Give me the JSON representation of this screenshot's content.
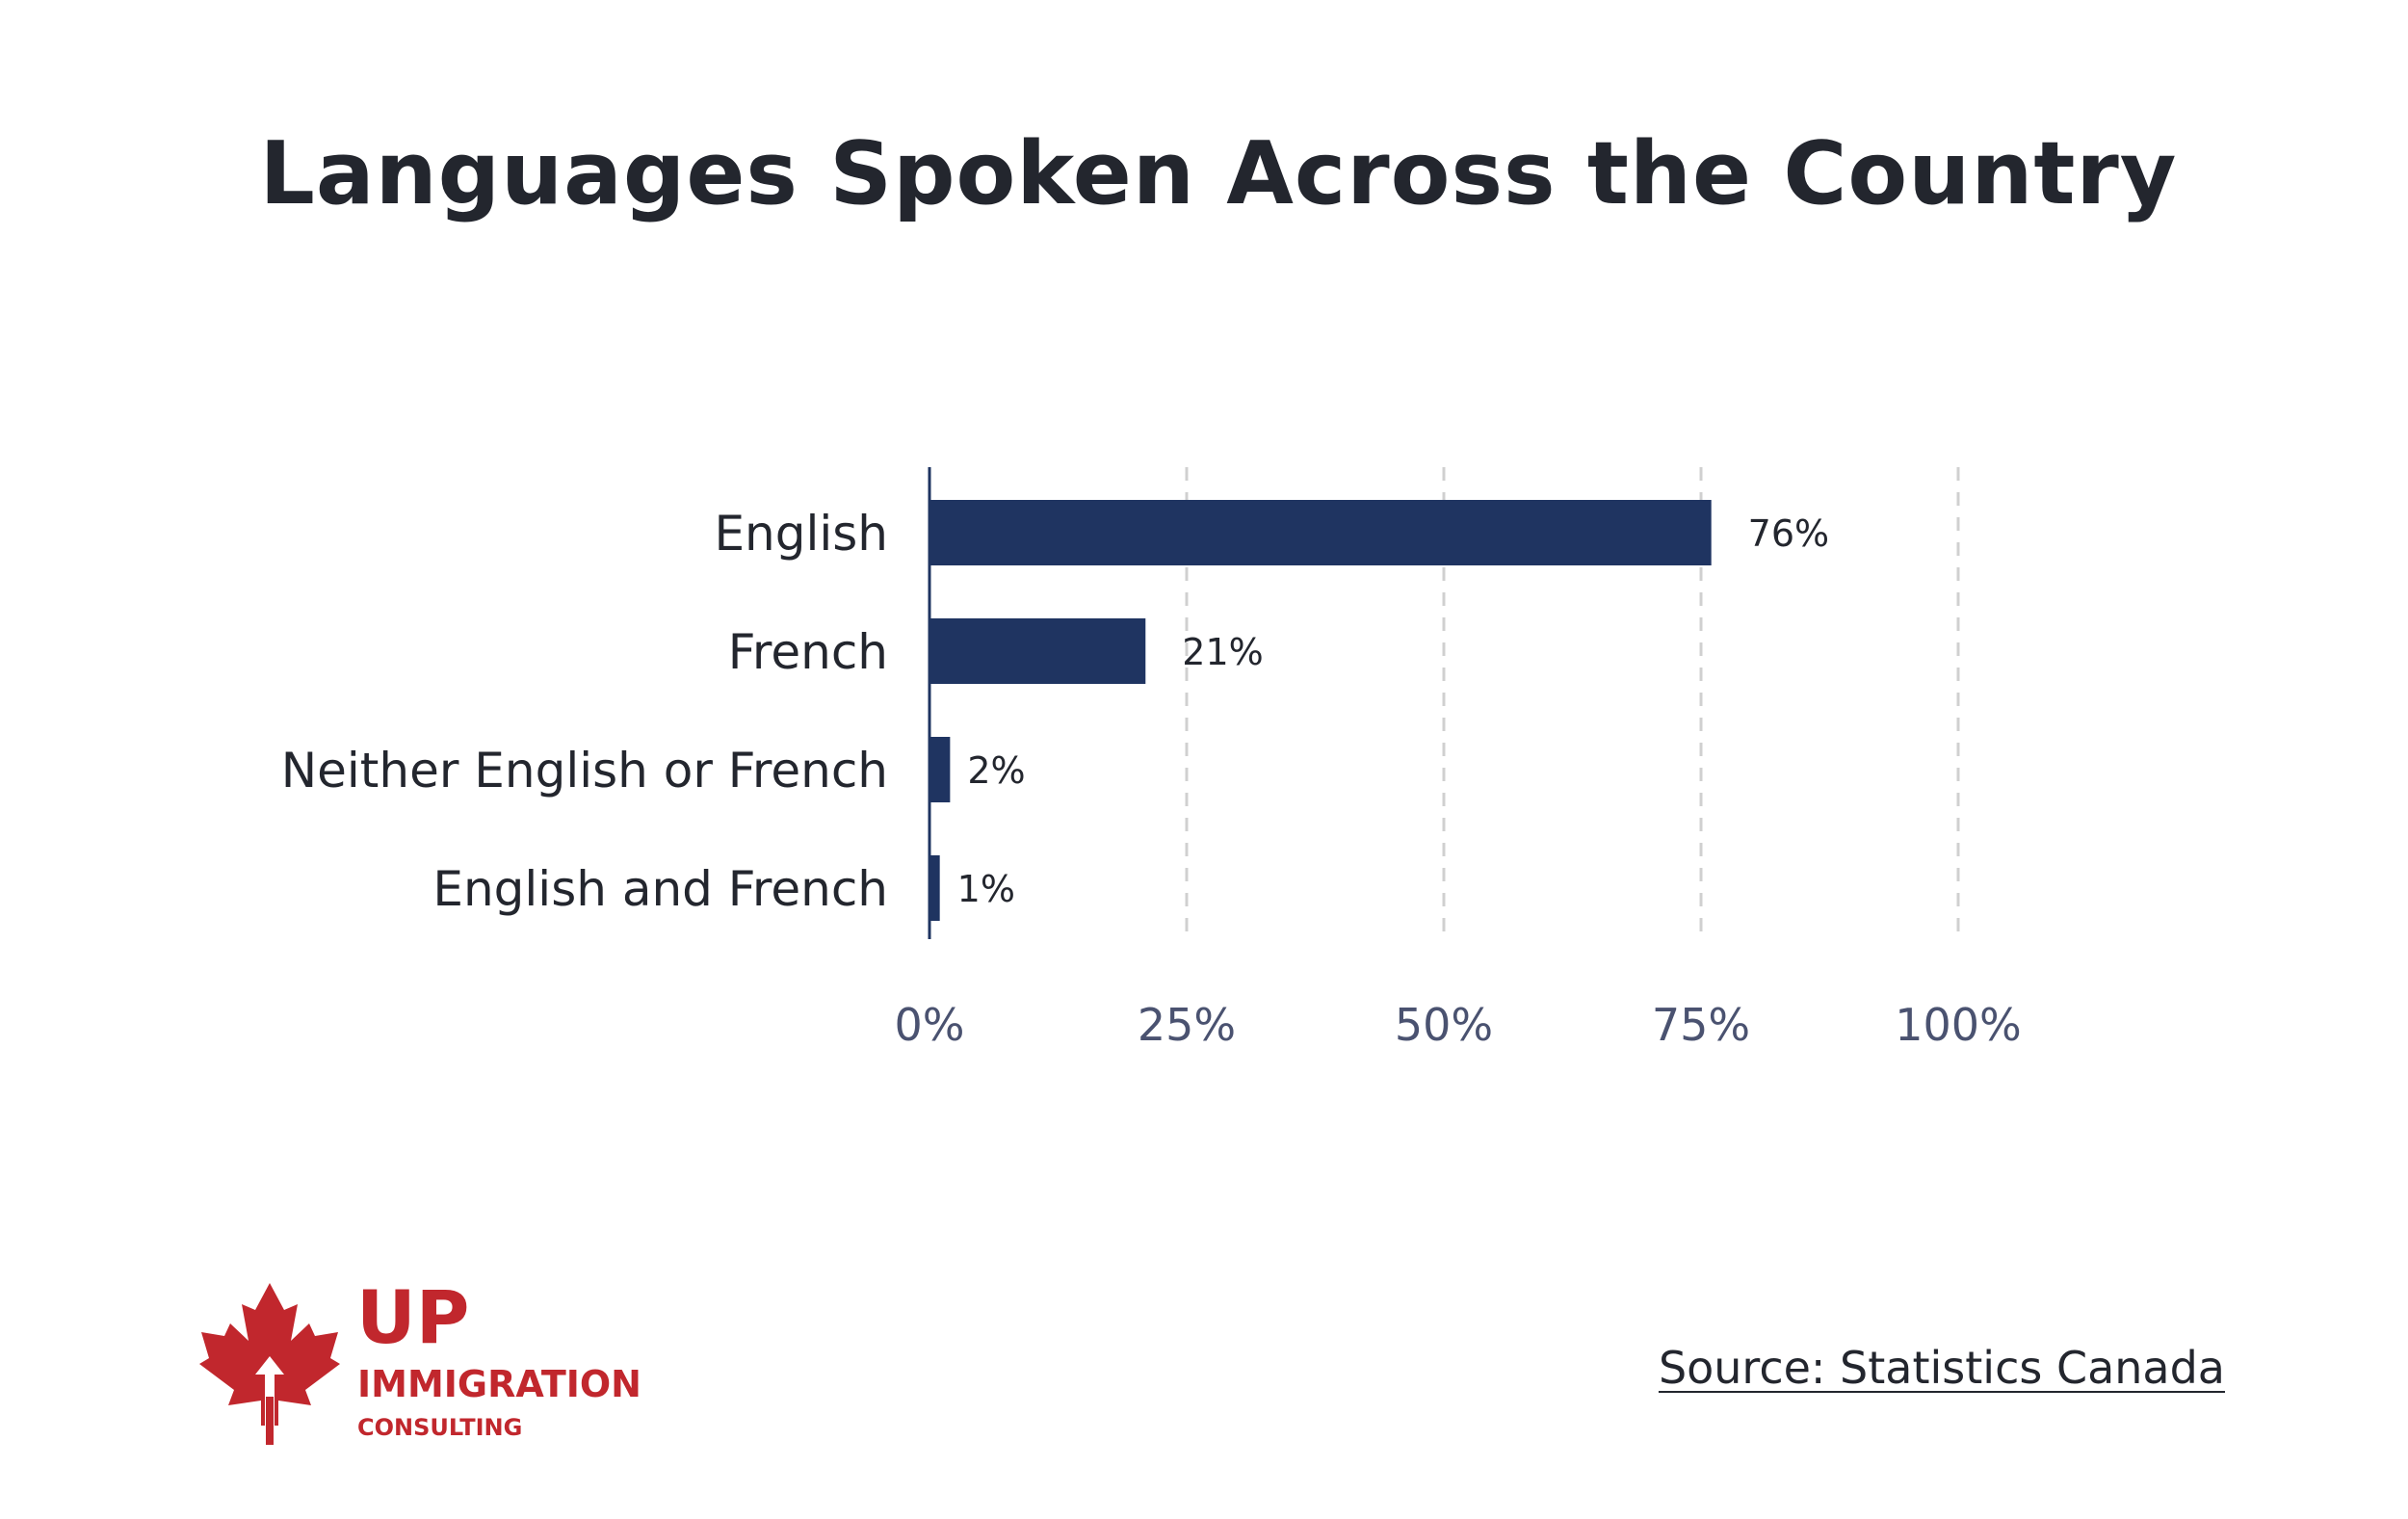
{
  "page": {
    "title": "Languages Spoken Across the Country",
    "source": "Source: Statistics Canada"
  },
  "logo": {
    "line1": "UP",
    "line2": "IMMIGRATION",
    "line3": "CONSULTING",
    "icon": "maple-leaf-arrow-icon",
    "color": "#c1272d"
  },
  "chart_data": {
    "type": "bar",
    "orientation": "horizontal",
    "title": "Languages Spoken Across the Country",
    "categories": [
      "English",
      "French",
      "Neither English or French",
      "English and French"
    ],
    "values": [
      76,
      21,
      2,
      1
    ],
    "value_labels": [
      "76%",
      "21%",
      "2%",
      "1%"
    ],
    "x_ticks": [
      "0%",
      "25%",
      "50%",
      "75%",
      "100%"
    ],
    "x_tick_values": [
      0,
      25,
      50,
      75,
      100
    ],
    "xlim": [
      0,
      100
    ],
    "xlabel": "",
    "ylabel": "",
    "grid": "vertical dashed",
    "legend": "none",
    "bar_color": "#1f3461",
    "gridline_color": "#d0d0d0",
    "tick_label_color": "#4a5270",
    "category_label_color": "#23262e"
  }
}
